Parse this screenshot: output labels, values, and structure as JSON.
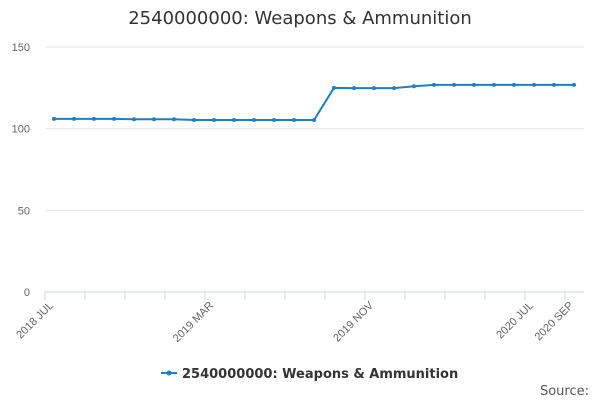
{
  "chart_data": {
    "type": "line",
    "title": "2540000000: Weapons & Ammunition",
    "xlabel": "",
    "ylabel": "",
    "ylim": [
      0,
      150
    ],
    "y_ticks": [
      0,
      50,
      100,
      150
    ],
    "grid": true,
    "legend_position": "bottom",
    "x": [
      "2018 JUL",
      "2018 AUG",
      "2018 SEP",
      "2018 OCT",
      "2018 NOV",
      "2018 DEC",
      "2019 JAN",
      "2019 FEB",
      "2019 MAR",
      "2019 APR",
      "2019 MAY",
      "2019 JUN",
      "2019 JUL",
      "2019 AUG",
      "2019 SEP",
      "2019 OCT",
      "2019 NOV",
      "2019 DEC",
      "2020 JAN",
      "2020 FEB",
      "2020 MAR",
      "2020 APR",
      "2020 MAY",
      "2020 JUN",
      "2020 JUL",
      "2020 AUG",
      "2020 SEP"
    ],
    "x_tick_labels": [
      {
        "index": 0,
        "label": "2018 JUL"
      },
      {
        "index": 8,
        "label": "2019 MAR"
      },
      {
        "index": 16,
        "label": "2019 NOV"
      },
      {
        "index": 24,
        "label": "2020 JUL"
      },
      {
        "index": 26,
        "label": "2020 SEP"
      }
    ],
    "series": [
      {
        "name": "2540000000: Weapons & Ammunition",
        "color": "#1f7fc4",
        "values": [
          106,
          106,
          106,
          106,
          105.8,
          105.8,
          105.8,
          105.3,
          105.3,
          105.3,
          105.3,
          105.3,
          105.3,
          105.3,
          125,
          124.8,
          124.8,
          124.8,
          126,
          126.8,
          126.8,
          126.8,
          126.8,
          126.8,
          126.8,
          126.8,
          126.8
        ]
      }
    ]
  },
  "footer": {
    "source_label": "Source:"
  }
}
